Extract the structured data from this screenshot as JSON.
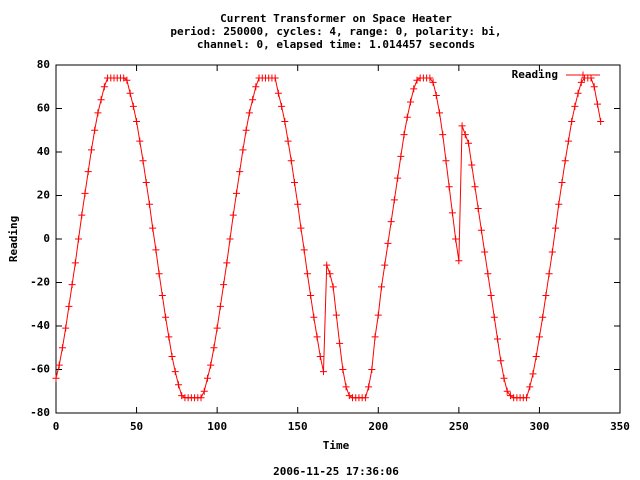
{
  "chart_data": {
    "type": "line",
    "title": "Current Transformer on Space Heater",
    "subtitle": [
      "period: 250000, cycles: 4, range: 0, polarity: bi,",
      "channel: 0, elapsed time: 1.014457 seconds"
    ],
    "xlabel": "Time",
    "ylabel": "Reading",
    "footer": "2006-11-25 17:36:06",
    "legend": "top-right",
    "xlim": [
      0,
      350
    ],
    "xticks": [
      0,
      50,
      100,
      150,
      200,
      250,
      300,
      350
    ],
    "ylim": [
      -80,
      80
    ],
    "yticks": [
      -80,
      -60,
      -40,
      -20,
      0,
      20,
      40,
      60,
      80
    ],
    "x": [
      0,
      2,
      4,
      6,
      8,
      10,
      12,
      14,
      16,
      18,
      20,
      22,
      24,
      26,
      28,
      30,
      32,
      34,
      36,
      38,
      40,
      42,
      44,
      46,
      48,
      50,
      52,
      54,
      56,
      58,
      60,
      62,
      64,
      66,
      68,
      70,
      72,
      74,
      76,
      78,
      80,
      82,
      84,
      86,
      88,
      90,
      92,
      94,
      96,
      98,
      100,
      102,
      104,
      106,
      108,
      110,
      112,
      114,
      116,
      118,
      120,
      122,
      124,
      126,
      128,
      130,
      132,
      134,
      136,
      138,
      140,
      142,
      144,
      146,
      148,
      150,
      152,
      154,
      156,
      158,
      160,
      162,
      164,
      166,
      168,
      170,
      172,
      174,
      176,
      178,
      180,
      182,
      184,
      186,
      188,
      190,
      192,
      194,
      196,
      198,
      200,
      202,
      204,
      206,
      208,
      210,
      212,
      214,
      216,
      218,
      220,
      222,
      224,
      226,
      228,
      230,
      232,
      234,
      236,
      238,
      240,
      242,
      244,
      246,
      248,
      250,
      252,
      254,
      256,
      258,
      260,
      262,
      264,
      266,
      268,
      270,
      272,
      274,
      276,
      278,
      280,
      282,
      284,
      286,
      288,
      290,
      292,
      294,
      296,
      298,
      300,
      302,
      304,
      306,
      308,
      310,
      312,
      314,
      316,
      318,
      320,
      322,
      324,
      326,
      328,
      330,
      332,
      334,
      336,
      338
    ],
    "series": [
      {
        "name": "Reading",
        "color": "#ff0000",
        "values": [
          -64,
          -58,
          -50,
          -41,
          -31,
          -21,
          -11,
          0,
          11,
          21,
          31,
          41,
          50,
          58,
          64,
          70,
          74,
          74,
          74,
          74,
          74,
          74,
          73,
          67,
          61,
          54,
          45,
          36,
          26,
          16,
          5,
          -5,
          -16,
          -26,
          -36,
          -45,
          -54,
          -61,
          -67,
          -72,
          -73,
          -73,
          -73,
          -73,
          -73,
          -73,
          -70,
          -64,
          -58,
          -50,
          -41,
          -31,
          -21,
          -11,
          0,
          11,
          21,
          31,
          41,
          50,
          58,
          64,
          70,
          74,
          74,
          74,
          74,
          74,
          74,
          67,
          61,
          54,
          45,
          36,
          26,
          16,
          5,
          -5,
          -16,
          -26,
          -36,
          -45,
          -54,
          -61,
          -12,
          -16,
          -22,
          -35,
          -48,
          -60,
          -68,
          -72,
          -73,
          -73,
          -73,
          -73,
          -73,
          -68,
          -60,
          -45,
          -35,
          -22,
          -12,
          -2,
          8,
          18,
          28,
          38,
          48,
          56,
          63,
          69,
          73,
          74,
          74,
          74,
          74,
          72,
          66,
          58,
          48,
          36,
          24,
          12,
          0,
          -10,
          52,
          48,
          44,
          34,
          24,
          14,
          4,
          -6,
          -16,
          -26,
          -36,
          -46,
          -56,
          -64,
          -70,
          -72,
          -73,
          -73,
          -73,
          -73,
          -73,
          -68,
          -62,
          -54,
          -45,
          -36,
          -26,
          -16,
          -6,
          5,
          16,
          26,
          36,
          45,
          54,
          61,
          67,
          72,
          74,
          74,
          74,
          70,
          62,
          54
        ]
      }
    ]
  }
}
